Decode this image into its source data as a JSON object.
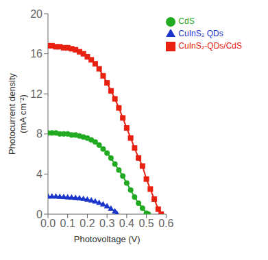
{
  "chart_data": {
    "type": "line",
    "xlabel": "Photovoltage (V)",
    "ylabel": "Photocurrent density\n(mA cm⁻²)",
    "xlim": [
      0,
      0.6
    ],
    "ylim": [
      0,
      20
    ],
    "xticks": [
      {
        "value": 0,
        "label": "0.0"
      },
      0.1,
      0.2,
      0.3,
      0.4,
      0.5,
      0.6
    ],
    "yticks": [
      0,
      4,
      8,
      12,
      16,
      20
    ],
    "grid": false,
    "legend": "upper right",
    "series": [
      {
        "name": "CuInS₂-QDs/CdS",
        "color": "#e82010",
        "marker": "square",
        "x": [
          0.0,
          0.02,
          0.04,
          0.06,
          0.08,
          0.1,
          0.12,
          0.14,
          0.16,
          0.18,
          0.2,
          0.22,
          0.24,
          0.26,
          0.28,
          0.3,
          0.32,
          0.34,
          0.36,
          0.38,
          0.4,
          0.42,
          0.44,
          0.46,
          0.48,
          0.5,
          0.52,
          0.54,
          0.56,
          0.575
        ],
        "values": [
          16.8,
          16.8,
          16.7,
          16.7,
          16.6,
          16.6,
          16.5,
          16.4,
          16.2,
          16.0,
          15.7,
          15.4,
          15.0,
          14.5,
          13.8,
          13.1,
          12.3,
          11.5,
          10.6,
          9.6,
          8.6,
          7.6,
          6.6,
          5.6,
          4.8,
          3.5,
          2.5,
          1.5,
          0.5,
          0.0
        ]
      },
      {
        "name": "CdS",
        "color": "#22aa22",
        "marker": "circle",
        "x": [
          0.0,
          0.02,
          0.04,
          0.06,
          0.08,
          0.1,
          0.12,
          0.14,
          0.16,
          0.18,
          0.2,
          0.22,
          0.24,
          0.26,
          0.28,
          0.3,
          0.32,
          0.34,
          0.36,
          0.38,
          0.4,
          0.42,
          0.44,
          0.46,
          0.48,
          0.5,
          0.51
        ],
        "values": [
          8.1,
          8.1,
          8.1,
          8.0,
          8.0,
          8.0,
          7.9,
          7.9,
          7.8,
          7.7,
          7.6,
          7.4,
          7.2,
          6.9,
          6.5,
          6.1,
          5.6,
          5.0,
          4.4,
          3.8,
          3.1,
          2.4,
          1.7,
          1.1,
          0.6,
          0.1,
          0.0
        ]
      },
      {
        "name": "CuInS₂ QDs",
        "color": "#1a35cc",
        "marker": "triangle",
        "x": [
          0.0,
          0.02,
          0.04,
          0.06,
          0.08,
          0.1,
          0.12,
          0.14,
          0.16,
          0.18,
          0.2,
          0.22,
          0.24,
          0.26,
          0.28,
          0.3,
          0.32,
          0.34,
          0.35
        ],
        "values": [
          1.75,
          1.75,
          1.75,
          1.72,
          1.7,
          1.68,
          1.65,
          1.62,
          1.58,
          1.52,
          1.45,
          1.37,
          1.26,
          1.13,
          0.97,
          0.78,
          0.55,
          0.28,
          0.05
        ]
      }
    ]
  }
}
